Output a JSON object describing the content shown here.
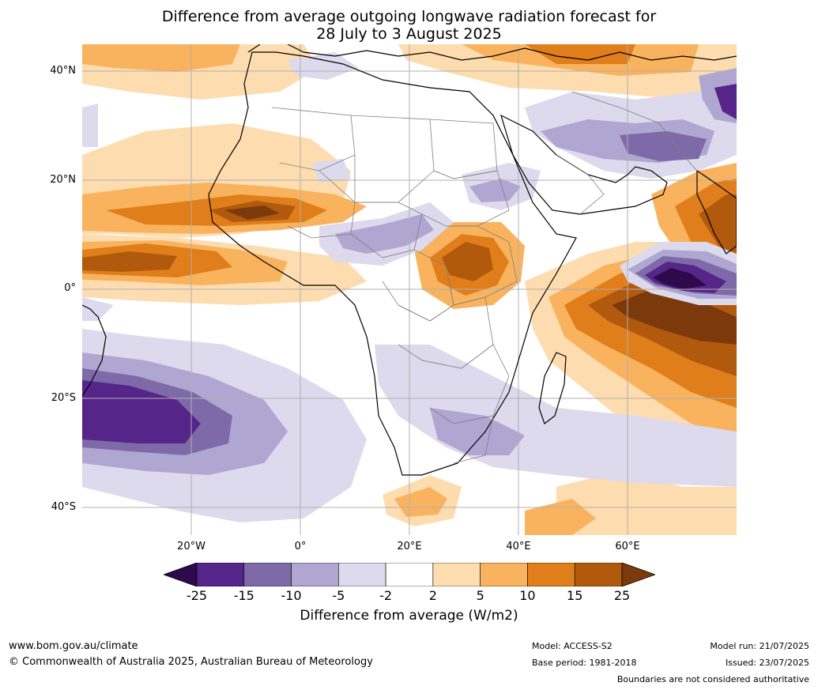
{
  "title_line1": "Difference from average outgoing longwave radiation forecast for",
  "title_line2": "28 July to 3 August 2025",
  "map": {
    "lat_labels": [
      "40°N",
      "20°N",
      "0°",
      "20°S",
      "40°S"
    ],
    "lon_labels": [
      "20°W",
      "0°",
      "20°E",
      "40°E",
      "60°E"
    ]
  },
  "legend": {
    "title": "Difference from average (W/m2)",
    "ticks": [
      "-25",
      "-15",
      "-10",
      "-5",
      "-2",
      "2",
      "5",
      "10",
      "15",
      "25"
    ],
    "colors": [
      "#2e0a4d",
      "#56258a",
      "#7e6aa8",
      "#afa6d1",
      "#dcdaec",
      "#ffffff",
      "#fddcb0",
      "#f9b35e",
      "#df7e1a",
      "#b15a0d",
      "#7c3a0c"
    ]
  },
  "footer": {
    "website": "www.bom.gov.au/climate",
    "copyright": "© Commonwealth of Australia 2025, Australian Bureau of Meteorology",
    "model": "Model: ACCESS-S2",
    "base_period": "Base period: 1981-2018",
    "model_run": "Model run: 21/07/2025",
    "issued": "Issued: 23/07/2025",
    "disclaimer": "Boundaries are not considered authoritative"
  }
}
